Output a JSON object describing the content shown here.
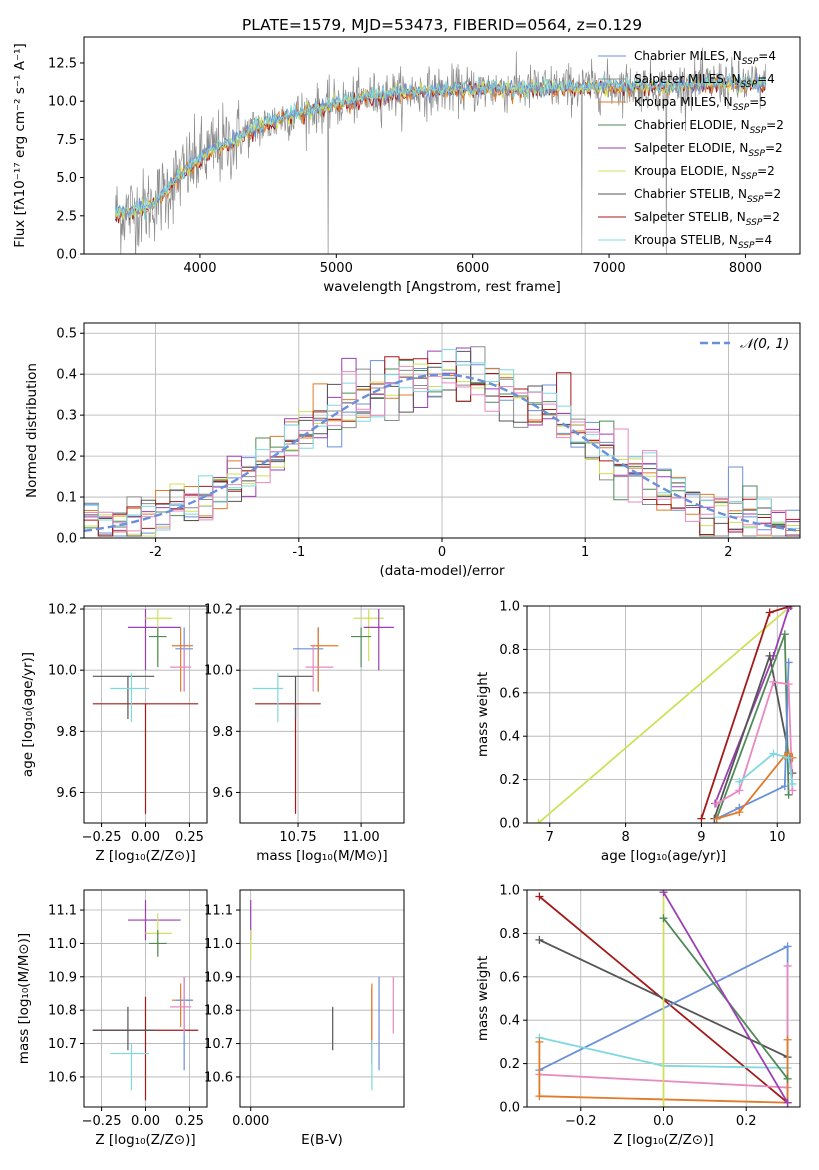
{
  "colors": {
    "Chabrier MILES": "#6a8fdb",
    "Salpeter MILES": "#8c8c8c",
    "Kroupa MILES": "#e07b2a",
    "Chabrier ELODIE": "#4f8a58",
    "Salpeter ELODIE": "#9b3fb5",
    "Kroupa ELODIE": "#cfe05a",
    "Chabrier STELIB": "#555555",
    "Salpeter STELIB": "#a31a1a",
    "Kroupa STELIB": "#7fd8df",
    "pink": "#e889c0",
    "normal": "#6a8fdb"
  },
  "chart_data": [
    {
      "id": "spectrum",
      "type": "line",
      "title": "PLATE=1579, MJD=53473, FIBERID=0564, z=0.129",
      "xlabel": "wavelength [Angstrom, rest frame]",
      "ylabel": "Flux [fλ10⁻¹⁷ erg cm⁻² s⁻¹ A⁻¹]",
      "xlim": [
        3150,
        8400
      ],
      "ylim": [
        0,
        14.2
      ],
      "xticks": [
        4000,
        5000,
        6000,
        7000,
        8000
      ],
      "yticks": [
        0.0,
        2.5,
        5.0,
        7.5,
        10.0,
        12.5
      ],
      "legend_position": "right",
      "legend": [
        {
          "label": "Chabrier MILES, N",
          "sub": "SSP",
          "tail": "=4",
          "series": "Chabrier MILES"
        },
        {
          "label": "Salpeter MILES, N",
          "sub": "SSP",
          "tail": "=4",
          "series": "Salpeter MILES"
        },
        {
          "label": "Kroupa MILES, N",
          "sub": "SSP",
          "tail": "=5",
          "series": "Kroupa MILES"
        },
        {
          "label": "Chabrier ELODIE, N",
          "sub": "SSP",
          "tail": "=2",
          "series": "Chabrier ELODIE"
        },
        {
          "label": "Salpeter ELODIE, N",
          "sub": "SSP",
          "tail": "=2",
          "series": "Salpeter ELODIE"
        },
        {
          "label": "Kroupa ELODIE, N",
          "sub": "SSP",
          "tail": "=2",
          "series": "Kroupa ELODIE"
        },
        {
          "label": "Chabrier STELIB, N",
          "sub": "SSP",
          "tail": "=2",
          "series": "Chabrier STELIB"
        },
        {
          "label": "Salpeter STELIB, N",
          "sub": "SSP",
          "tail": "=2",
          "series": "Salpeter STELIB"
        },
        {
          "label": "Kroupa STELIB, N",
          "sub": "SSP",
          "tail": "=4",
          "series": "Kroupa STELIB"
        }
      ],
      "continuum": {
        "x": [
          3380,
          3500,
          3600,
          3700,
          3800,
          3900,
          4000,
          4100,
          4200,
          4300,
          4400,
          4500,
          4600,
          4800,
          5000,
          5200,
          5400,
          5600,
          5800,
          6000,
          6200,
          6400,
          6600,
          6800,
          7000,
          7200,
          7400,
          7600,
          7800,
          8000,
          8150
        ],
        "y": [
          2.6,
          2.8,
          3.0,
          3.6,
          4.6,
          5.5,
          6.2,
          6.8,
          7.2,
          7.7,
          8.2,
          8.5,
          8.9,
          9.4,
          9.8,
          10.2,
          10.5,
          10.6,
          10.7,
          10.8,
          10.8,
          10.8,
          10.9,
          10.9,
          11.0,
          11.0,
          10.9,
          11.1,
          11.2,
          11.1,
          11.0
        ]
      },
      "dips": [
        {
          "x": 6800,
          "y": 0.0
        },
        {
          "x": 7420,
          "y": 0.0
        },
        {
          "x": 4940,
          "y": 0.0
        }
      ]
    },
    {
      "id": "residuals",
      "type": "histogram",
      "xlabel": "(data-model)/error",
      "ylabel": "Normed distribution",
      "xlim": [
        -2.5,
        2.5
      ],
      "ylim": [
        0,
        0.525
      ],
      "xticks": [
        -2,
        -1,
        0,
        1,
        2
      ],
      "yticks": [
        0.0,
        0.1,
        0.2,
        0.3,
        0.4,
        0.5
      ],
      "legend_position": "top-right",
      "legend_label": "𝒩(0, 1)",
      "bin_width": 0.1,
      "bin_start": -2.5
    },
    {
      "id": "age-vs-Z",
      "type": "errorbar",
      "xlabel": "Z [log₁₀(Z/Z⊙)]",
      "ylabel": "age  [log₁₀(age/yr)]",
      "xlim": [
        -0.35,
        0.35
      ],
      "ylim": [
        9.5,
        10.21
      ],
      "xticks": [
        -0.25,
        0.0,
        0.25
      ],
      "xtick_labels": [
        "−0.25",
        "0.00",
        "0.25"
      ],
      "yticks": [
        9.6,
        9.8,
        10.0,
        10.2
      ],
      "points": [
        {
          "series": "Salpeter STELIB",
          "x": 0.0,
          "xerr": [
            0.3,
            0.3
          ],
          "y": 9.89,
          "yerr": [
            0.36,
            0.0
          ]
        },
        {
          "series": "Chabrier STELIB",
          "x": -0.1,
          "xerr": [
            0.2,
            0.15
          ],
          "y": 9.98,
          "yerr": [
            0.14,
            0.0
          ]
        },
        {
          "series": "Kroupa STELIB",
          "x": -0.08,
          "xerr": [
            0.12,
            0.1
          ],
          "y": 9.94,
          "yerr": [
            0.11,
            0.05
          ]
        },
        {
          "series": "Salpeter ELODIE",
          "x": 0.0,
          "xerr": [
            0.1,
            0.2
          ],
          "y": 10.14,
          "yerr": [
            0.14,
            0.06
          ]
        },
        {
          "series": "Kroupa ELODIE",
          "x": 0.07,
          "xerr": [
            0.07,
            0.08
          ],
          "y": 10.17,
          "yerr": [
            0.14,
            0.03
          ]
        },
        {
          "series": "Chabrier ELODIE",
          "x": 0.07,
          "xerr": [
            0.05,
            0.05
          ],
          "y": 10.11,
          "yerr": [
            0.1,
            0.03
          ]
        },
        {
          "series": "Kroupa MILES",
          "x": 0.2,
          "xerr": [
            0.05,
            0.07
          ],
          "y": 10.08,
          "yerr": [
            0.15,
            0.06
          ]
        },
        {
          "series": "Chabrier MILES",
          "x": 0.22,
          "xerr": [
            0.05,
            0.05
          ],
          "y": 10.07,
          "yerr": [
            0.14,
            0.07
          ]
        },
        {
          "series": "pink",
          "x": 0.22,
          "xerr": [
            0.08,
            0.04
          ],
          "y": 10.01,
          "yerr": [
            0.08,
            0.07
          ]
        }
      ]
    },
    {
      "id": "age-vs-mass",
      "type": "errorbar",
      "xlabel": "mass [log₁₀(M/M⊙)]",
      "ylabel": "",
      "xlim": [
        10.52,
        11.17
      ],
      "ylim": [
        9.5,
        10.21
      ],
      "xticks": [
        10.75,
        11.0
      ],
      "xtick_labels": [
        "10.75",
        "11.00"
      ],
      "yticks": [
        9.6,
        9.8,
        10.0,
        10.2
      ],
      "points": [
        {
          "series": "Salpeter STELIB",
          "x": 10.74,
          "xerr": [
            0.16,
            0.1
          ],
          "y": 9.89,
          "yerr": [
            0.36,
            0.0
          ]
        },
        {
          "series": "Chabrier STELIB",
          "x": 10.74,
          "xerr": [
            0.07,
            0.07
          ],
          "y": 9.98,
          "yerr": [
            0.14,
            0.0
          ]
        },
        {
          "series": "Kroupa STELIB",
          "x": 10.67,
          "xerr": [
            0.1,
            0.02
          ],
          "y": 9.94,
          "yerr": [
            0.11,
            0.05
          ]
        },
        {
          "series": "Chabrier MILES",
          "x": 10.83,
          "xerr": [
            0.1,
            0.02
          ],
          "y": 10.07,
          "yerr": [
            0.14,
            0.07
          ]
        },
        {
          "series": "Kroupa MILES",
          "x": 10.83,
          "xerr": [
            0.03,
            0.08
          ],
          "y": 10.08,
          "yerr": [
            0.15,
            0.06
          ]
        },
        {
          "series": "pink",
          "x": 10.81,
          "xerr": [
            0.03,
            0.08
          ],
          "y": 10.01,
          "yerr": [
            0.08,
            0.07
          ]
        },
        {
          "series": "Kroupa ELODIE",
          "x": 11.03,
          "xerr": [
            0.06,
            0.06
          ],
          "y": 10.17,
          "yerr": [
            0.14,
            0.03
          ]
        },
        {
          "series": "Chabrier ELODIE",
          "x": 11.0,
          "xerr": [
            0.04,
            0.04
          ],
          "y": 10.11,
          "yerr": [
            0.1,
            0.03
          ]
        },
        {
          "series": "Salpeter ELODIE",
          "x": 11.07,
          "xerr": [
            0.06,
            0.06
          ],
          "y": 10.14,
          "yerr": [
            0.14,
            0.06
          ]
        }
      ]
    },
    {
      "id": "weight-vs-age",
      "type": "line",
      "xlabel": "age  [log₁₀(age/yr)]",
      "ylabel": "mass weight",
      "xlim": [
        6.7,
        10.3
      ],
      "ylim": [
        0,
        1.0
      ],
      "xticks": [
        7,
        8,
        9,
        10
      ],
      "yticks": [
        0.0,
        0.2,
        0.4,
        0.6,
        0.8,
        1.0
      ],
      "series": [
        {
          "series": "Kroupa ELODIE",
          "x": [
            6.85,
            10.18
          ],
          "y": [
            0.0,
            1.0
          ]
        },
        {
          "series": "Salpeter STELIB",
          "x": [
            9.0,
            9.9,
            10.18
          ],
          "y": [
            0.02,
            0.97,
            1.0
          ]
        },
        {
          "series": "Salpeter ELODIE",
          "x": [
            9.18,
            9.95,
            10.15
          ],
          "y": [
            0.09,
            0.77,
            0.99
          ]
        },
        {
          "series": "Chabrier STELIB",
          "x": [
            9.17,
            9.9,
            10.2
          ],
          "y": [
            0.02,
            0.77,
            0.23
          ]
        },
        {
          "series": "Chabrier ELODIE",
          "x": [
            9.2,
            10.1,
            10.15
          ],
          "y": [
            0.02,
            0.87,
            0.13
          ]
        },
        {
          "series": "Chabrier MILES",
          "x": [
            9.2,
            9.5,
            10.1,
            10.15
          ],
          "y": [
            0.02,
            0.07,
            0.17,
            0.74
          ]
        },
        {
          "series": "pink",
          "x": [
            9.2,
            9.5,
            9.95,
            10.15,
            10.2
          ],
          "y": [
            0.09,
            0.15,
            0.65,
            0.64,
            0.15
          ]
        },
        {
          "series": "Kroupa MILES",
          "x": [
            9.2,
            9.5,
            10.1,
            10.15,
            10.2
          ],
          "y": [
            0.02,
            0.05,
            0.31,
            0.32,
            0.3
          ]
        },
        {
          "series": "Kroupa STELIB",
          "x": [
            9.5,
            9.95,
            10.15,
            10.2
          ],
          "y": [
            0.19,
            0.32,
            0.3,
            0.18
          ]
        }
      ]
    },
    {
      "id": "mass-vs-Z",
      "type": "errorbar",
      "xlabel": "Z [log₁₀(Z/Z⊙)]",
      "ylabel": "mass [log₁₀(M/M⊙)]",
      "xlim": [
        -0.35,
        0.35
      ],
      "ylim": [
        10.51,
        11.16
      ],
      "xticks": [
        -0.25,
        0.0,
        0.25
      ],
      "xtick_labels": [
        "−0.25",
        "0.00",
        "0.25"
      ],
      "yticks": [
        10.6,
        10.7,
        10.8,
        10.9,
        11.0,
        11.1
      ],
      "points": [
        {
          "series": "Salpeter STELIB",
          "x": 0.0,
          "xerr": [
            0.3,
            0.3
          ],
          "y": 10.74,
          "yerr": [
            0.21,
            0.1
          ]
        },
        {
          "series": "Chabrier STELIB",
          "x": -0.1,
          "xerr": [
            0.2,
            0.15
          ],
          "y": 10.74,
          "yerr": [
            0.06,
            0.07
          ]
        },
        {
          "series": "Kroupa STELIB",
          "x": -0.08,
          "xerr": [
            0.12,
            0.1
          ],
          "y": 10.67,
          "yerr": [
            0.11,
            0.03
          ]
        },
        {
          "series": "Salpeter ELODIE",
          "x": 0.0,
          "xerr": [
            0.1,
            0.2
          ],
          "y": 11.07,
          "yerr": [
            0.06,
            0.06
          ]
        },
        {
          "series": "Kroupa ELODIE",
          "x": 0.07,
          "xerr": [
            0.07,
            0.08
          ],
          "y": 11.03,
          "yerr": [
            0.06,
            0.06
          ]
        },
        {
          "series": "Chabrier ELODIE",
          "x": 0.07,
          "xerr": [
            0.05,
            0.05
          ],
          "y": 11.0,
          "yerr": [
            0.04,
            0.04
          ]
        },
        {
          "series": "Kroupa MILES",
          "x": 0.2,
          "xerr": [
            0.05,
            0.07
          ],
          "y": 10.83,
          "yerr": [
            0.08,
            0.05
          ]
        },
        {
          "series": "Chabrier MILES",
          "x": 0.22,
          "xerr": [
            0.05,
            0.05
          ],
          "y": 10.83,
          "yerr": [
            0.21,
            0.07
          ]
        },
        {
          "series": "pink",
          "x": 0.22,
          "xerr": [
            0.08,
            0.04
          ],
          "y": 10.81,
          "yerr": [
            0.08,
            0.09
          ]
        }
      ]
    },
    {
      "id": "mass-vs-EBV",
      "type": "errorbar",
      "xlabel": "E(B-V)",
      "ylabel": "",
      "xlim": [
        -0.003,
        0.043
      ],
      "ylim": [
        10.51,
        11.16
      ],
      "xticks": [
        0.0
      ],
      "xtick_labels": [
        "0.000"
      ],
      "yticks": [
        10.6,
        10.7,
        10.8,
        10.9,
        11.0,
        11.1
      ],
      "points": [
        {
          "series": "Salpeter ELODIE",
          "x": 0.0,
          "xerr": [
            0,
            0
          ],
          "y": 11.07,
          "yerr": [
            0.06,
            0.06
          ]
        },
        {
          "series": "Kroupa ELODIE",
          "x": 0.0,
          "xerr": [
            0,
            0
          ],
          "y": 11.0,
          "yerr": [
            0.05,
            0.04
          ]
        },
        {
          "series": "Chabrier STELIB",
          "x": 0.023,
          "xerr": [
            0,
            0
          ],
          "y": 10.74,
          "yerr": [
            0.06,
            0.07
          ]
        },
        {
          "series": "Salpeter STELIB",
          "x": 0.034,
          "xerr": [
            0,
            0
          ],
          "y": 10.74,
          "yerr": [
            0.1,
            0.13
          ]
        },
        {
          "series": "Kroupa MILES",
          "x": 0.034,
          "xerr": [
            0,
            0
          ],
          "y": 10.78,
          "yerr": [
            0.1,
            0.1
          ]
        },
        {
          "series": "Kroupa STELIB",
          "x": 0.034,
          "xerr": [
            0,
            0
          ],
          "y": 10.67,
          "yerr": [
            0.11,
            0.04
          ]
        },
        {
          "series": "Chabrier MILES",
          "x": 0.036,
          "xerr": [
            0,
            0
          ],
          "y": 10.76,
          "yerr": [
            0.14,
            0.14
          ]
        },
        {
          "series": "pink",
          "x": 0.04,
          "xerr": [
            0,
            0
          ],
          "y": 10.82,
          "yerr": [
            0.09,
            0.08
          ]
        }
      ]
    },
    {
      "id": "weight-vs-Z",
      "type": "line",
      "xlabel": "Z [log₁₀(Z/Z⊙)]",
      "ylabel": "mass weight",
      "xlim": [
        -0.33,
        0.33
      ],
      "ylim": [
        0,
        1.0
      ],
      "xticks": [
        -0.2,
        0.0,
        0.2
      ],
      "xtick_labels": [
        "−0.2",
        "0.0",
        "0.2"
      ],
      "yticks": [
        0.0,
        0.2,
        0.4,
        0.6,
        0.8,
        1.0
      ],
      "series": [
        {
          "series": "Salpeter STELIB",
          "x": [
            -0.3,
            0.3
          ],
          "y": [
            0.97,
            0.02
          ]
        },
        {
          "series": "Chabrier STELIB",
          "x": [
            -0.3,
            0.3
          ],
          "y": [
            0.77,
            0.23
          ]
        },
        {
          "series": "Chabrier MILES",
          "x": [
            -0.3,
            0.3,
            0.3
          ],
          "y": [
            0.17,
            0.74,
            0.02
          ]
        },
        {
          "series": "Kroupa STELIB",
          "x": [
            -0.3,
            0.0,
            0.3
          ],
          "y": [
            0.32,
            0.19,
            0.18
          ]
        },
        {
          "series": "pink",
          "x": [
            -0.3,
            0.3,
            0.3
          ],
          "y": [
            0.15,
            0.09,
            0.65
          ]
        },
        {
          "series": "Kroupa MILES",
          "x": [
            -0.3,
            -0.3,
            0.3,
            0.3
          ],
          "y": [
            0.3,
            0.05,
            0.02,
            0.31
          ]
        },
        {
          "series": "Kroupa ELODIE",
          "x": [
            0.0,
            0.0
          ],
          "y": [
            1.0,
            0.0
          ]
        },
        {
          "series": "Chabrier ELODIE",
          "x": [
            0.0,
            0.3
          ],
          "y": [
            0.87,
            0.13
          ]
        },
        {
          "series": "Salpeter ELODIE",
          "x": [
            0.0,
            0.3
          ],
          "y": [
            0.99,
            0.02
          ]
        }
      ]
    }
  ]
}
